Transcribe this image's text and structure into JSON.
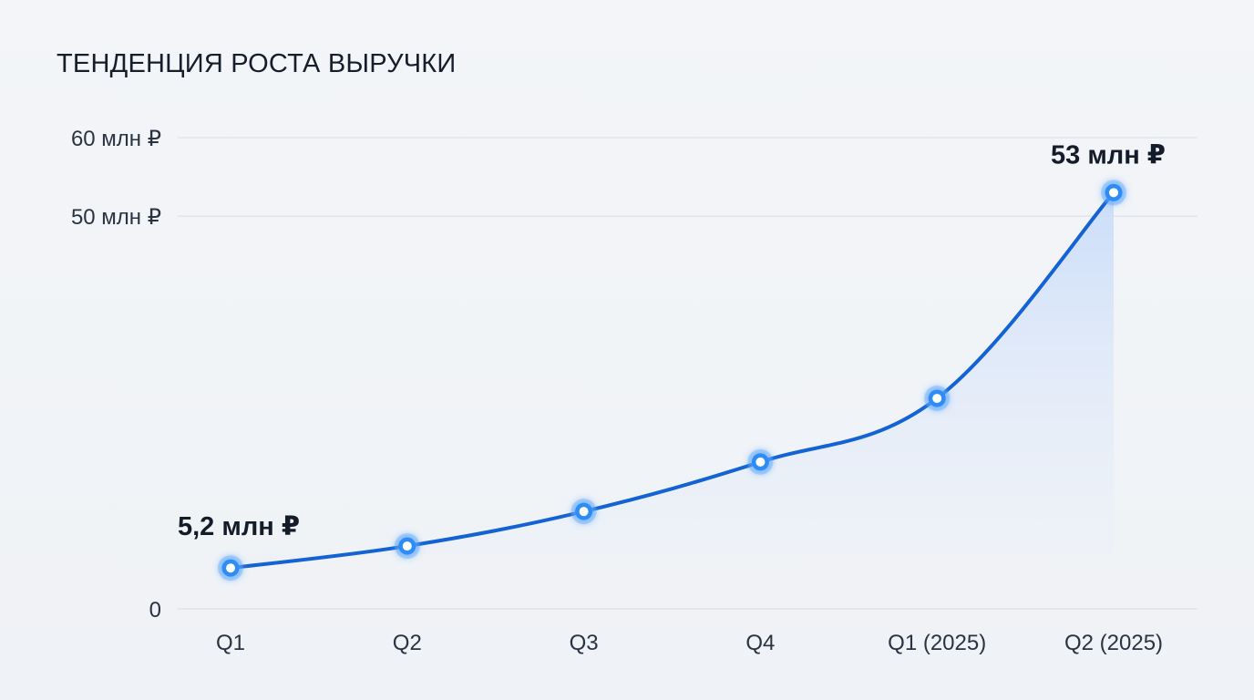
{
  "title": "ТЕНДЕНЦИЯ РОСТА ВЫРУЧКИ",
  "chart_data": {
    "type": "line",
    "title": "ТЕНДЕНЦИЯ РОСТА ВЫРУЧКИ",
    "xlabel": "",
    "ylabel": "",
    "categories": [
      "Q1",
      "Q2",
      "Q3",
      "Q4",
      "Q1 (2025)",
      "Q2 (2025)"
    ],
    "series": [
      {
        "values": [
          5.2,
          8.0,
          12.4,
          18.7,
          26.8,
          53
        ]
      }
    ],
    "ylim": [
      0,
      60
    ],
    "y_ticks": [
      {
        "value": 0,
        "label": "0"
      },
      {
        "value": 50,
        "label": "50 млн ₽"
      },
      {
        "value": 60,
        "label": "60 млн ₽"
      }
    ],
    "data_labels": [
      {
        "index": 0,
        "text": "5,2 млн ₽"
      },
      {
        "index": 5,
        "text": "53 млн ₽"
      }
    ],
    "grid": true,
    "legend": "none",
    "colors": {
      "line": "#1363d4",
      "point": "#2f8cf5",
      "area": "#cfe0fa",
      "grid": "#d9dde4"
    }
  }
}
